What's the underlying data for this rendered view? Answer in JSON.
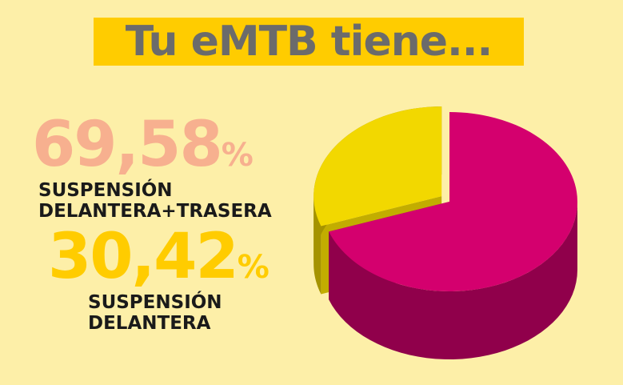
{
  "chart_data": {
    "type": "pie",
    "title": "Tu eMTB tiene...",
    "categories": [
      "SUSPENSIÓN DELANTERA+TRASERA",
      "SUSPENSIÓN DELANTERA"
    ],
    "values": [
      69.58,
      30.42
    ],
    "value_labels": [
      "69,58%",
      "30,42%"
    ],
    "colors": [
      "#d4006e",
      "#f2d800"
    ],
    "label_colors": [
      "#f7b08f",
      "#ffcc00"
    ]
  }
}
